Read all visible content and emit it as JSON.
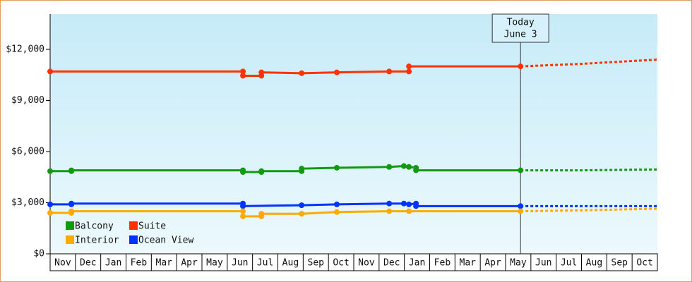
{
  "chart_data": {
    "type": "line",
    "xlim": [
      0,
      24
    ],
    "ylim": [
      0,
      14070
    ],
    "yticks": [
      {
        "value": 0,
        "label": "$0"
      },
      {
        "value": 3000,
        "label": "$3,000"
      },
      {
        "value": 6000,
        "label": "$6,000"
      },
      {
        "value": 9000,
        "label": "$9,000"
      },
      {
        "value": 12000,
        "label": "$12,000"
      }
    ],
    "xticks": [
      {
        "value": 0.5,
        "label": "Nov"
      },
      {
        "value": 1.5,
        "label": "Dec"
      },
      {
        "value": 2.5,
        "label": "Jan"
      },
      {
        "value": 3.5,
        "label": "Feb"
      },
      {
        "value": 4.5,
        "label": "Mar"
      },
      {
        "value": 5.5,
        "label": "Apr"
      },
      {
        "value": 6.5,
        "label": "May"
      },
      {
        "value": 7.5,
        "label": "Jun"
      },
      {
        "value": 8.5,
        "label": "Jul"
      },
      {
        "value": 9.5,
        "label": "Aug"
      },
      {
        "value": 10.5,
        "label": "Sep"
      },
      {
        "value": 11.5,
        "label": "Oct"
      },
      {
        "value": 12.5,
        "label": "Nov"
      },
      {
        "value": 13.5,
        "label": "Dec"
      },
      {
        "value": 14.5,
        "label": "Jan"
      },
      {
        "value": 15.5,
        "label": "Feb"
      },
      {
        "value": 16.5,
        "label": "Mar"
      },
      {
        "value": 17.5,
        "label": "Apr"
      },
      {
        "value": 18.5,
        "label": "May"
      },
      {
        "value": 19.5,
        "label": "Jun"
      },
      {
        "value": 20.5,
        "label": "Jul"
      },
      {
        "value": 21.5,
        "label": "Aug"
      },
      {
        "value": 22.5,
        "label": "Sep"
      },
      {
        "value": 23.5,
        "label": "Oct"
      }
    ],
    "today": {
      "x": 18.59,
      "lines": [
        "Today",
        "June 3"
      ]
    },
    "series": [
      {
        "name": "Suite",
        "color": "#ff3300",
        "x": [
          0,
          7.62,
          7.62,
          8.35,
          8.35,
          9.94,
          11.33,
          13.4,
          14.18,
          14.18,
          18.59
        ],
        "values": [
          10700,
          10700,
          10450,
          10450,
          10650,
          10600,
          10650,
          10700,
          10700,
          11000,
          11000
        ],
        "forecast_x": [
          18.59,
          21,
          24
        ],
        "forecast_values": [
          11000,
          11150,
          11400
        ]
      },
      {
        "name": "Balcony",
        "color": "#119911",
        "x": [
          0,
          0.84,
          0.84,
          7.62,
          7.62,
          8.35,
          8.35,
          9.94,
          9.94,
          11.33,
          13.4,
          13.98,
          14.18,
          14.46,
          14.46,
          18.59
        ],
        "values": [
          4850,
          4850,
          4900,
          4900,
          4800,
          4800,
          4850,
          4850,
          5000,
          5050,
          5100,
          5150,
          5100,
          5050,
          4900,
          4900
        ],
        "forecast_x": [
          18.59,
          21,
          24
        ],
        "forecast_values": [
          4900,
          4900,
          4950
        ]
      },
      {
        "name": "Ocean View",
        "color": "#0033ff",
        "x": [
          0,
          0.84,
          0.84,
          7.62,
          7.62,
          9.94,
          11.33,
          13.4,
          13.98,
          14.18,
          14.46,
          14.46,
          18.59
        ],
        "values": [
          2900,
          2900,
          2950,
          2950,
          2800,
          2850,
          2900,
          2950,
          2950,
          2900,
          2950,
          2800,
          2800
        ],
        "forecast_x": [
          18.59,
          21,
          24
        ],
        "forecast_values": [
          2800,
          2800,
          2800
        ]
      },
      {
        "name": "Interior",
        "color": "#ffaa00",
        "x": [
          0,
          0.84,
          0.84,
          7.62,
          7.62,
          8.35,
          8.35,
          9.94,
          11.33,
          13.4,
          14.18,
          18.59
        ],
        "values": [
          2400,
          2400,
          2500,
          2500,
          2200,
          2200,
          2350,
          2350,
          2450,
          2500,
          2500,
          2500
        ],
        "forecast_x": [
          18.59,
          21,
          24
        ],
        "forecast_values": [
          2500,
          2550,
          2650
        ]
      }
    ],
    "legend_order": [
      1,
      0,
      3,
      2
    ]
  }
}
